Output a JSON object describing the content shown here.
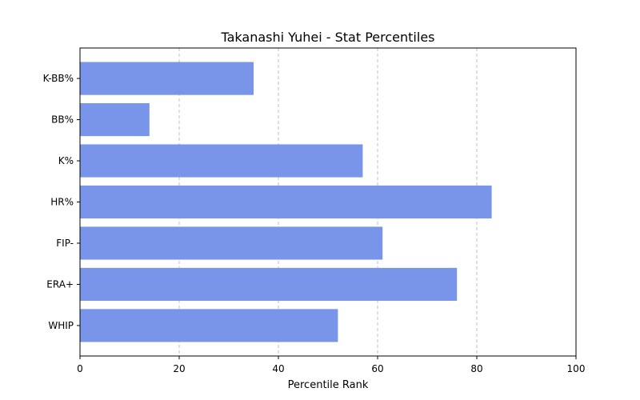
{
  "chart_data": {
    "type": "bar",
    "orientation": "horizontal",
    "title": "Takanashi Yuhei - Stat Percentiles",
    "xlabel": "Percentile Rank",
    "ylabel": "",
    "categories": [
      "K-BB%",
      "BB%",
      "K%",
      "HR%",
      "FIP-",
      "ERA+",
      "WHIP"
    ],
    "values": [
      35,
      14,
      57,
      83,
      61,
      76,
      52
    ],
    "xlim": [
      0,
      100
    ],
    "xticks": [
      0,
      20,
      40,
      60,
      80,
      100
    ],
    "grid": "x-dashed",
    "bar_color": "#7895ea"
  }
}
